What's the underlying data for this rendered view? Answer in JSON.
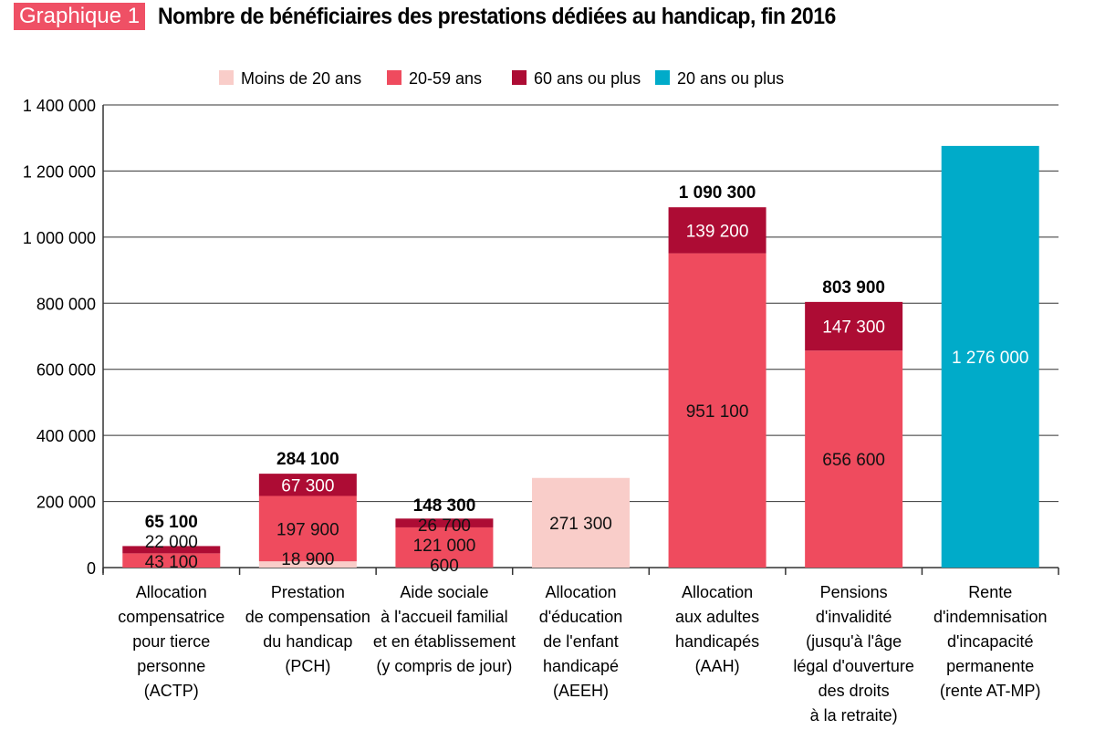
{
  "header": {
    "badge": "Graphique 1",
    "title": "Nombre de bénéficiaires des prestations dédiées au handicap, fin 2016"
  },
  "chart_data": {
    "type": "bar",
    "stacked": true,
    "ylim": [
      0,
      1400000
    ],
    "yticks": [
      0,
      200000,
      400000,
      600000,
      800000,
      1000000,
      1200000,
      1400000
    ],
    "ytick_labels": [
      "0",
      "200 000",
      "400 000",
      "600 000",
      "800 000",
      "1 000 000",
      "1 200 000",
      "1 400 000"
    ],
    "grid": true,
    "legend_position": "top",
    "categories": [
      [
        "Allocation",
        "compensatrice",
        "pour tierce",
        "personne",
        "(ACTP)"
      ],
      [
        "Prestation",
        "de compensation",
        "du handicap",
        "(PCH)"
      ],
      [
        "Aide sociale",
        "à l'accueil familial",
        "et en établissement",
        "(y compris de jour)"
      ],
      [
        "Allocation",
        "d'éducation",
        "de l'enfant",
        "handicapé",
        "(AEEH)"
      ],
      [
        "Allocation",
        "aux adultes",
        "handicapés",
        "(AAH)"
      ],
      [
        "Pensions",
        "d'invalidité",
        "(jusqu'à l'âge",
        "légal d'ouverture",
        "des droits",
        "à la retraite)"
      ],
      [
        "Rente",
        "d'indemnisation",
        "d'incapacité",
        "permanente",
        "(rente AT-MP)"
      ]
    ],
    "series": [
      {
        "name": "Moins de 20 ans",
        "color": "#f9cdc9",
        "values": [
          0,
          18900,
          600,
          271300,
          0,
          0,
          0
        ],
        "labels": [
          "",
          "18 900",
          "600",
          "271 300",
          "",
          "",
          ""
        ]
      },
      {
        "name": "20-59 ans",
        "color": "#ef4b5e",
        "values": [
          43100,
          197900,
          121000,
          0,
          951100,
          656600,
          0
        ],
        "labels": [
          "43 100",
          "197 900",
          "121 000",
          "",
          "951 100",
          "656 600",
          ""
        ]
      },
      {
        "name": "60 ans ou plus",
        "color": "#ad0c34",
        "values": [
          22000,
          67300,
          26700,
          0,
          139200,
          147300,
          0
        ],
        "labels": [
          "22 000",
          "67 300",
          "26 700",
          "",
          "139 200",
          "147 300",
          ""
        ]
      },
      {
        "name": "20 ans ou plus",
        "color": "#00abc9",
        "values": [
          0,
          0,
          0,
          0,
          0,
          0,
          1276000
        ],
        "labels": [
          "",
          "",
          "",
          "",
          "",
          "",
          "1 276 000"
        ]
      }
    ],
    "totals": [
      "65 100",
      "284 100",
      "148 300",
      "",
      "1 090 300",
      "803 900",
      ""
    ]
  }
}
